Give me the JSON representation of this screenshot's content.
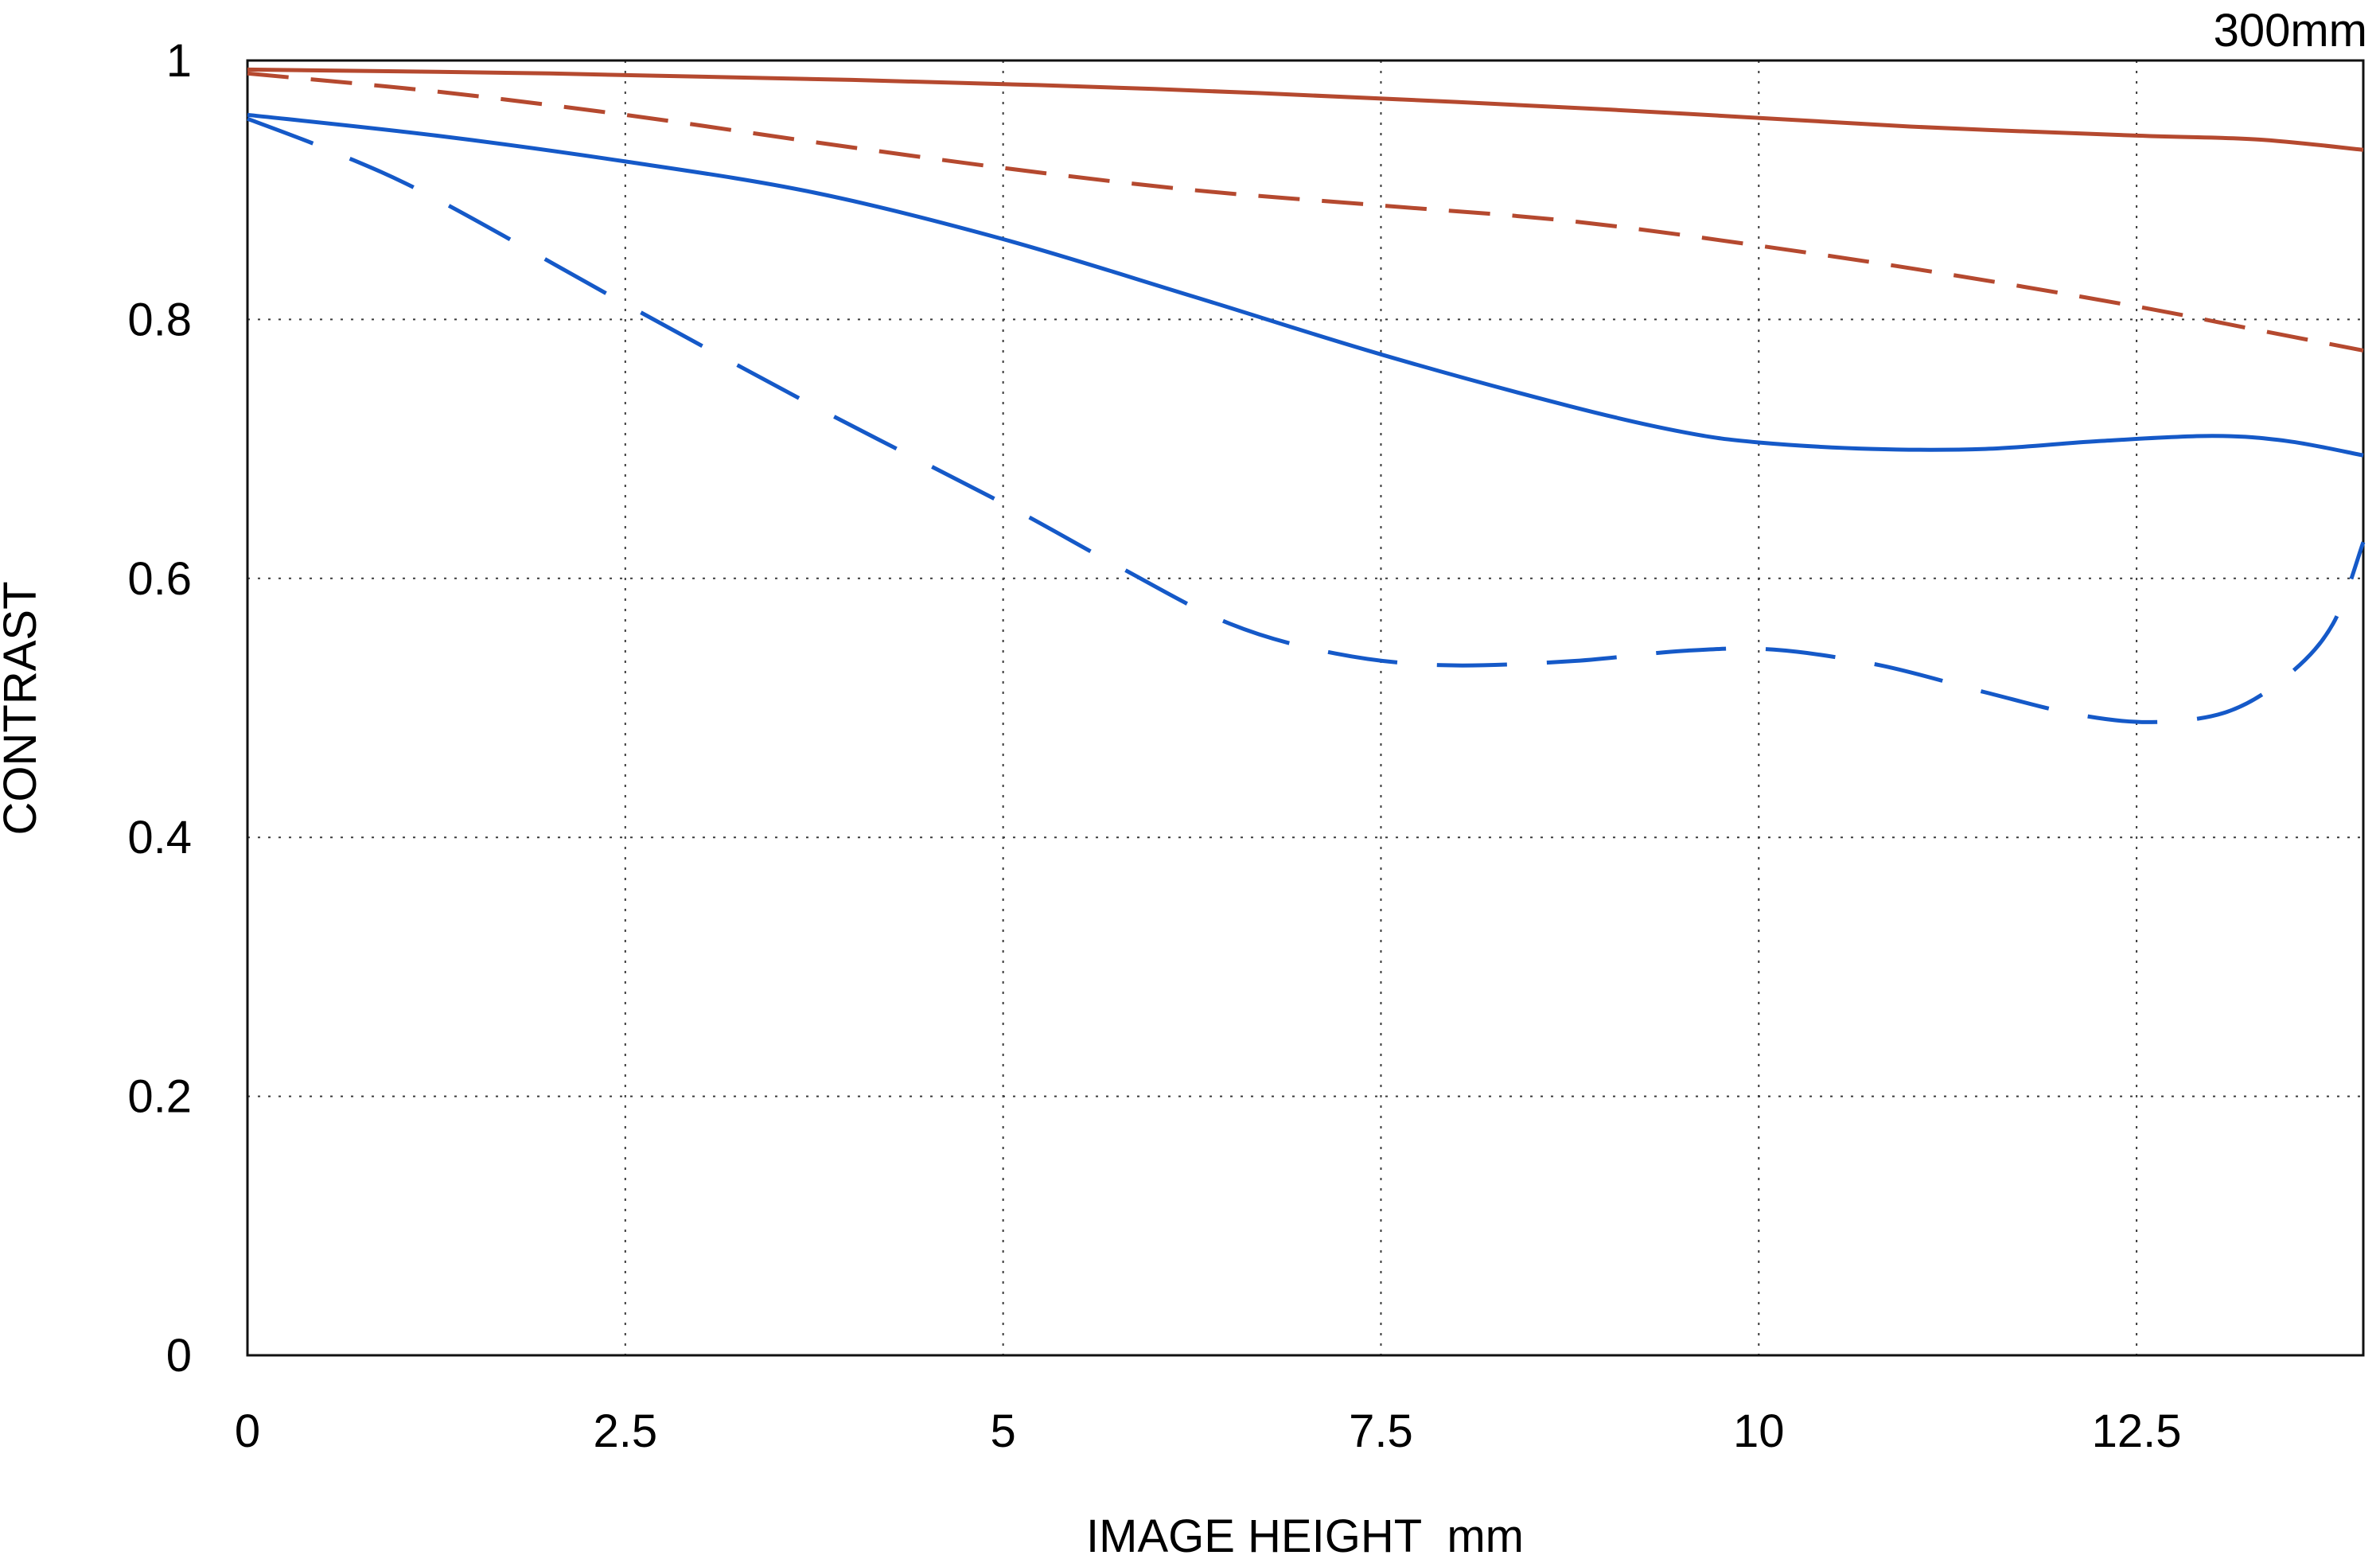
{
  "chart": {
    "focal_label": "300mm",
    "ylabel": "CONTRAST",
    "xlabel": "IMAGE HEIGHT  mm"
  },
  "chart_data": {
    "type": "line",
    "title": "300mm",
    "xlabel": "IMAGE HEIGHT mm",
    "ylabel": "CONTRAST",
    "xlim": [
      0,
      14
    ],
    "ylim": [
      0,
      1
    ],
    "xticks": [
      0,
      2.5,
      5,
      7.5,
      10,
      12.5
    ],
    "yticks": [
      0,
      0.2,
      0.4,
      0.6,
      0.8,
      1
    ],
    "grid": "dotted",
    "legend": "none",
    "colors": {
      "red": "#b5492f",
      "blue": "#1559c8"
    },
    "series": [
      {
        "name": "red-solid",
        "color": "#b5492f",
        "dash": "solid",
        "points": [
          [
            0,
            0.993
          ],
          [
            2,
            0.99
          ],
          [
            4,
            0.985
          ],
          [
            6,
            0.978
          ],
          [
            8,
            0.968
          ],
          [
            9.5,
            0.959
          ],
          [
            11,
            0.949
          ],
          [
            12.5,
            0.942
          ],
          [
            13.3,
            0.939
          ],
          [
            14,
            0.931
          ]
        ]
      },
      {
        "name": "red-dashed",
        "color": "#b5492f",
        "dash": "52 28",
        "points": [
          [
            0,
            0.99
          ],
          [
            1.25,
            0.976
          ],
          [
            2.5,
            0.958
          ],
          [
            3.75,
            0.937
          ],
          [
            5,
            0.917
          ],
          [
            6.25,
            0.9
          ],
          [
            7.5,
            0.888
          ],
          [
            8.75,
            0.876
          ],
          [
            10,
            0.857
          ],
          [
            11.25,
            0.835
          ],
          [
            12.5,
            0.81
          ],
          [
            13.25,
            0.793
          ],
          [
            14,
            0.776
          ]
        ]
      },
      {
        "name": "blue-solid",
        "color": "#1559c8",
        "dash": "solid",
        "points": [
          [
            0,
            0.958
          ],
          [
            1.25,
            0.942
          ],
          [
            2.5,
            0.922
          ],
          [
            3.75,
            0.898
          ],
          [
            5,
            0.862
          ],
          [
            6.25,
            0.818
          ],
          [
            7.5,
            0.773
          ],
          [
            8.75,
            0.733
          ],
          [
            9.5,
            0.713
          ],
          [
            10,
            0.705
          ],
          [
            10.75,
            0.7
          ],
          [
            11.5,
            0.7
          ],
          [
            12.25,
            0.706
          ],
          [
            13,
            0.71
          ],
          [
            13.5,
            0.706
          ],
          [
            14,
            0.695
          ]
        ]
      },
      {
        "name": "blue-dashed",
        "color": "#1559c8",
        "dash": "88 50",
        "points": [
          [
            0,
            0.955
          ],
          [
            0.6,
            0.928
          ],
          [
            1.25,
            0.893
          ],
          [
            2.5,
            0.812
          ],
          [
            3.75,
            0.733
          ],
          [
            5,
            0.658
          ],
          [
            5.75,
            0.61
          ],
          [
            6.5,
            0.565
          ],
          [
            7.2,
            0.542
          ],
          [
            7.9,
            0.533
          ],
          [
            8.75,
            0.536
          ],
          [
            9.5,
            0.544
          ],
          [
            10.1,
            0.545
          ],
          [
            10.8,
            0.533
          ],
          [
            11.5,
            0.512
          ],
          [
            12.1,
            0.495
          ],
          [
            12.6,
            0.489
          ],
          [
            13.1,
            0.497
          ],
          [
            13.5,
            0.525
          ],
          [
            13.8,
            0.565
          ],
          [
            14,
            0.628
          ]
        ]
      }
    ]
  }
}
